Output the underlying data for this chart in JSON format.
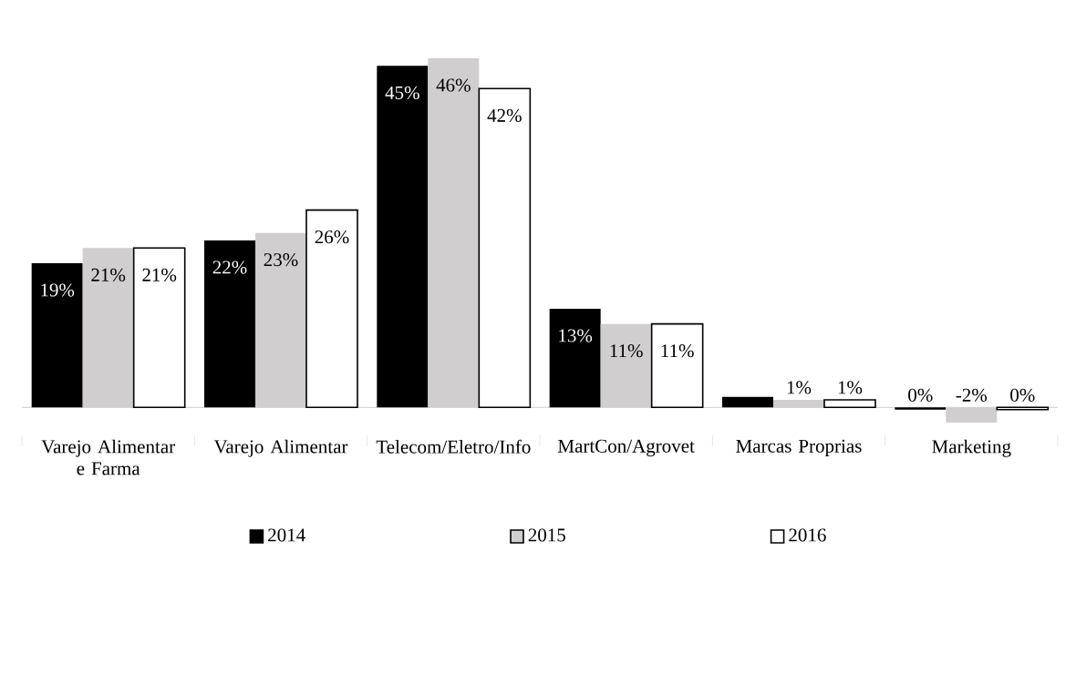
{
  "chart_data": {
    "type": "bar",
    "categories": [
      "Varejo Alimentar e Farma",
      "Varejo Alimentar",
      "Telecom/Eletro/Info",
      "MartCon/Agrovet",
      "Marcas Proprias",
      "Marketing"
    ],
    "series": [
      {
        "name": "2014",
        "color": "#000000",
        "values": [
          19,
          22,
          45,
          13,
          1.4,
          -0.3
        ],
        "value_labels": [
          "19%",
          "22%",
          "45%",
          "13%",
          null,
          "0%"
        ]
      },
      {
        "name": "2015",
        "color": "#d0cece",
        "values": [
          21,
          23,
          46,
          11,
          1,
          -2
        ],
        "value_labels": [
          "21%",
          "23%",
          "46%",
          "11%",
          "1%",
          "-2%"
        ]
      },
      {
        "name": "2016",
        "color": "#ffffff",
        "values": [
          21,
          26,
          42,
          11,
          1,
          -0.3
        ],
        "value_labels": [
          "21%",
          "26%",
          "42%",
          "11%",
          "1%",
          "0%"
        ]
      }
    ],
    "legend": "bottom"
  }
}
